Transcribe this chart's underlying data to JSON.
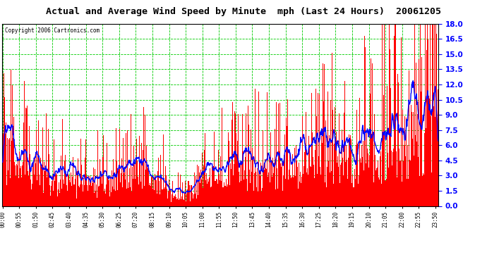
{
  "title": "Actual and Average Wind Speed by Minute  mph (Last 24 Hours)  20061205",
  "copyright": "Copyright 2006 Cartronics.com",
  "ylim": [
    0.0,
    18.0
  ],
  "yticks": [
    0.0,
    1.5,
    3.0,
    4.5,
    6.0,
    7.5,
    9.0,
    10.5,
    12.0,
    13.5,
    15.0,
    16.5,
    18.0
  ],
  "bar_color": "#FF0000",
  "avg_line_color": "#0000FF",
  "bg_color": "#FFFFFF",
  "plot_bg_color": "#FFFFFF",
  "grid_color": "#00CC00",
  "title_color": "#000000",
  "copyright_color": "#000000",
  "n_minutes": 1440,
  "seed": 42,
  "tick_interval": 55
}
